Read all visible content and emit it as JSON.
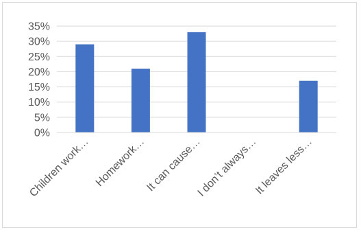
{
  "chart_data": {
    "type": "bar",
    "categories": [
      "Children work…",
      "Homework…",
      "It can cause…",
      "I don’t always…",
      "It leaves less…"
    ],
    "values": [
      0.29,
      0.21,
      0.33,
      0.0,
      0.17
    ],
    "ylim": [
      0,
      0.35
    ],
    "yticks": [
      "0%",
      "5%",
      "10%",
      "15%",
      "20%",
      "25%",
      "30%",
      "35%"
    ],
    "ytick_values": [
      0,
      0.05,
      0.1,
      0.15,
      0.2,
      0.25,
      0.3,
      0.35
    ],
    "bar_color": "#4472C4",
    "gridline_color": "#d9d9d9",
    "grid": true,
    "title": "",
    "xlabel": "",
    "ylabel": ""
  }
}
